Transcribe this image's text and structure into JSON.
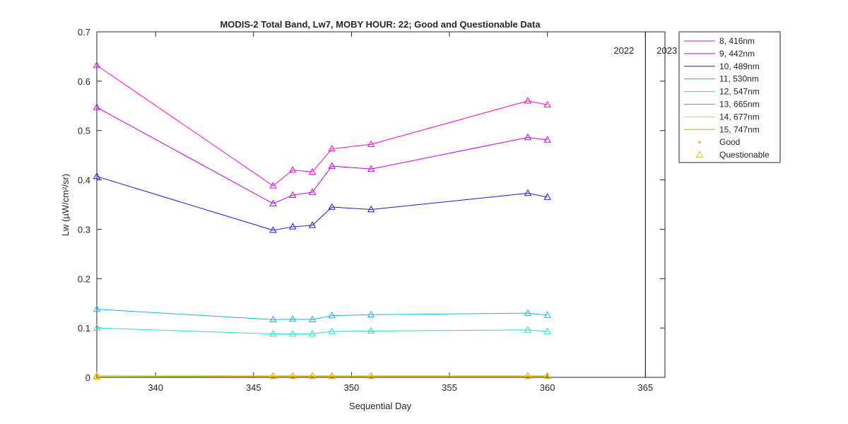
{
  "chart_data": {
    "type": "line",
    "title": "MODIS-2 Total Band,  Lw7, MOBY HOUR: 22;  Good and Questionable Data",
    "xlabel": "Sequential Day",
    "ylabel": "Lw (µW/cm²/sr)",
    "xlim": [
      337,
      366
    ],
    "ylim": [
      0,
      0.7
    ],
    "xticks": [
      340,
      345,
      350,
      355,
      360,
      365
    ],
    "yticks": [
      0,
      0.1,
      0.2,
      0.3,
      0.4,
      0.5,
      0.6,
      0.7
    ],
    "xtick_labels": [
      "340",
      "345",
      "350",
      "355",
      "360",
      "365"
    ],
    "ytick_labels": [
      "0",
      "0.1",
      "0.2",
      "0.3",
      "0.4",
      "0.5",
      "0.6",
      "0.7"
    ],
    "grid": false,
    "legend_position": "outside-top-right",
    "year_divider": {
      "x": 365,
      "left_label": "2022",
      "right_label": "2023"
    },
    "x": [
      337,
      346,
      347,
      348,
      349,
      351,
      359,
      360
    ],
    "series": [
      {
        "name": "8, 416nm",
        "color": "#ff00cc",
        "values": [
          0.632,
          0.388,
          0.42,
          0.416,
          0.463,
          0.472,
          0.56,
          0.552
        ]
      },
      {
        "name": "9, 442nm",
        "color": "#bb00ee",
        "values": [
          0.547,
          0.352,
          0.369,
          0.375,
          0.428,
          0.422,
          0.486,
          0.481
        ]
      },
      {
        "name": "10, 489nm",
        "color": "#1a1adb",
        "values": [
          0.407,
          0.298,
          0.305,
          0.308,
          0.345,
          0.34,
          0.373,
          0.365
        ]
      },
      {
        "name": "11, 530nm",
        "color": "#1ab2e6",
        "values": [
          0.138,
          0.117,
          0.118,
          0.117,
          0.125,
          0.127,
          0.13,
          0.126
        ]
      },
      {
        "name": "12, 547nm",
        "color": "#22e0c8",
        "values": [
          0.1,
          0.088,
          0.088,
          0.088,
          0.093,
          0.094,
          0.096,
          0.093
        ]
      },
      {
        "name": "13, 665nm",
        "color": "#33dd33",
        "values": [
          0.003,
          0.003,
          0.003,
          0.003,
          0.003,
          0.003,
          0.003,
          0.003
        ]
      },
      {
        "name": "14, 677nm",
        "color": "#aaee22",
        "values": [
          0.003,
          0.003,
          0.003,
          0.003,
          0.003,
          0.003,
          0.003,
          0.003
        ]
      },
      {
        "name": "15, 747nm",
        "color": "#f0a500",
        "values": [
          0.001,
          0.002,
          0.002,
          0.002,
          0.002,
          0.002,
          0.002,
          0.002
        ]
      }
    ],
    "marker_legend": [
      {
        "name": "Good",
        "color": "#f0a500",
        "marker": "dot"
      },
      {
        "name": "Questionable",
        "color": "#e6c000",
        "marker": "triangle"
      }
    ]
  }
}
